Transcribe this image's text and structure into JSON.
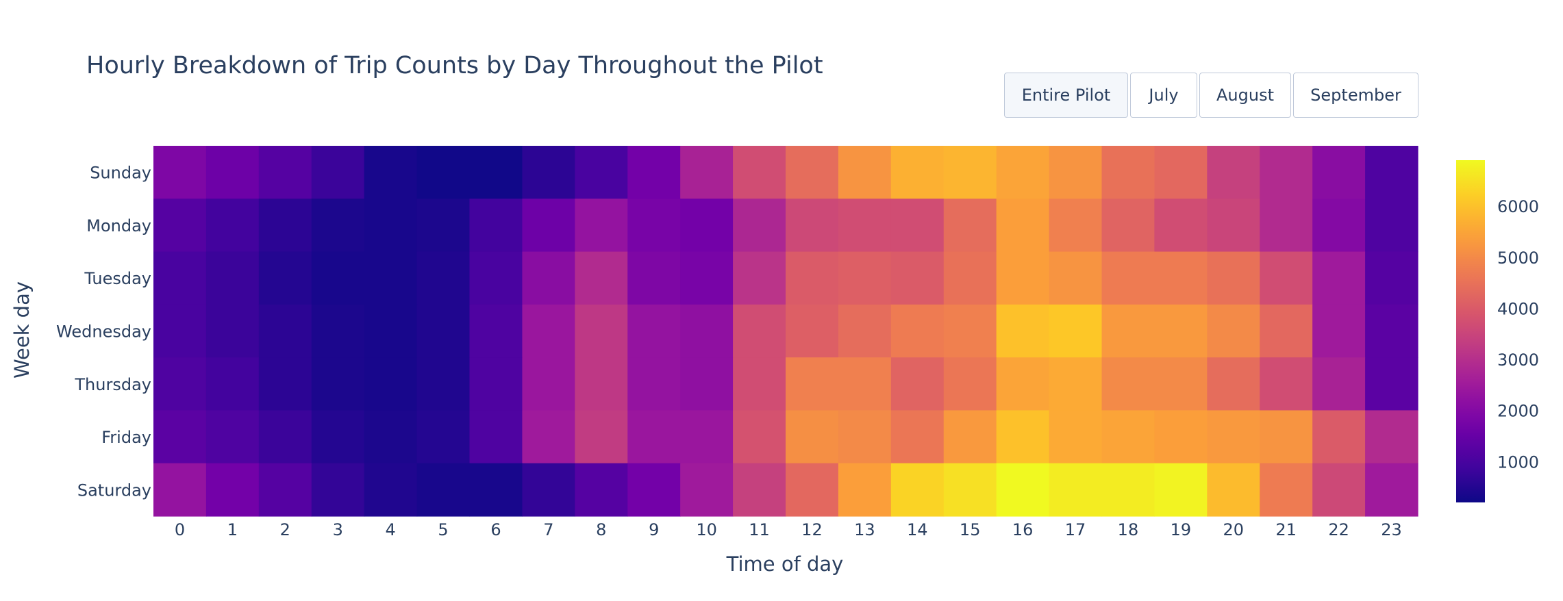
{
  "chart_data": {
    "type": "heatmap",
    "title": "Hourly Breakdown of Trip Counts by Day Throughout the Pilot",
    "xlabel": "Time of day",
    "ylabel": "Week day",
    "x": [
      "0",
      "1",
      "2",
      "3",
      "4",
      "5",
      "6",
      "7",
      "8",
      "9",
      "10",
      "11",
      "12",
      "13",
      "14",
      "15",
      "16",
      "17",
      "18",
      "19",
      "20",
      "21",
      "22",
      "23"
    ],
    "y": [
      "Sunday",
      "Monday",
      "Tuesday",
      "Wednesday",
      "Thursday",
      "Friday",
      "Saturday"
    ],
    "z": [
      [
        1900,
        1600,
        1200,
        800,
        350,
        250,
        250,
        600,
        1000,
        1700,
        2700,
        3700,
        4400,
        5200,
        5700,
        5800,
        5500,
        5200,
        4500,
        4300,
        3400,
        2900,
        2100,
        1100
      ],
      [
        1200,
        900,
        600,
        400,
        350,
        400,
        900,
        1600,
        2300,
        1800,
        1700,
        2800,
        3600,
        3700,
        3700,
        4400,
        5400,
        4800,
        4200,
        3700,
        3500,
        2900,
        2000,
        1100
      ],
      [
        1000,
        800,
        500,
        350,
        350,
        450,
        1000,
        2100,
        2900,
        1900,
        1800,
        3100,
        4000,
        4100,
        4000,
        4500,
        5400,
        5200,
        4700,
        4700,
        4500,
        3700,
        2500,
        1200
      ],
      [
        1000,
        800,
        600,
        400,
        350,
        450,
        1100,
        2400,
        3200,
        2300,
        2200,
        3700,
        4100,
        4400,
        4700,
        4800,
        6000,
        6100,
        5300,
        5300,
        5000,
        4300,
        2500,
        1300
      ],
      [
        1100,
        900,
        600,
        400,
        350,
        450,
        1100,
        2400,
        3200,
        2300,
        2200,
        3700,
        4800,
        4800,
        4200,
        4600,
        5500,
        5600,
        5000,
        5000,
        4400,
        3700,
        2700,
        1300
      ],
      [
        1300,
        1100,
        800,
        500,
        400,
        500,
        1100,
        2500,
        3300,
        2400,
        2400,
        3800,
        5100,
        5000,
        4600,
        5300,
        6000,
        5600,
        5500,
        5400,
        5300,
        5200,
        4000,
        2900
      ],
      [
        2300,
        1700,
        1200,
        700,
        450,
        350,
        350,
        700,
        1200,
        1700,
        2500,
        3400,
        4300,
        5400,
        6300,
        6500,
        6900,
        6700,
        6700,
        6800,
        5900,
        4700,
        3600,
        2500
      ]
    ],
    "colorscale": "Plasma",
    "zmin": 200,
    "zmax": 6900,
    "colorbar_ticks": [
      "1000",
      "2000",
      "3000",
      "4000",
      "5000",
      "6000"
    ]
  },
  "buttons": [
    {
      "label": "Entire Pilot",
      "active": true
    },
    {
      "label": "July",
      "active": false
    },
    {
      "label": "August",
      "active": false
    },
    {
      "label": "September",
      "active": false
    }
  ]
}
